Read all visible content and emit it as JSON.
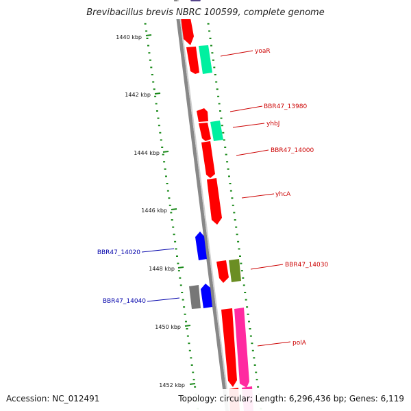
{
  "title": "Brevibacillus brevis NBRC 100599, complete genome",
  "accession": "Accession: NC_012491",
  "summary": "Topology: circular; Length: 6,296,436 bp; Genes: 6,119",
  "ticks": [
    "1440 kbp",
    "1442 kbp",
    "1444 kbp",
    "1446 kbp",
    "1448 kbp",
    "1450 kbp",
    "1452 kbp"
  ],
  "gene_labels": [
    {
      "name": "yoaR",
      "color": "#cc0000"
    },
    {
      "name": "BBR47_13980",
      "color": "#cc0000"
    },
    {
      "name": "yhbJ",
      "color": "#cc0000"
    },
    {
      "name": "BBR47_14000",
      "color": "#cc0000"
    },
    {
      "name": "yhcA",
      "color": "#cc0000"
    },
    {
      "name": "BBR47_14020",
      "color": "#0000aa"
    },
    {
      "name": "BBR47_14030",
      "color": "#cc0000"
    },
    {
      "name": "BBR47_14040",
      "color": "#0000aa"
    },
    {
      "name": "polA",
      "color": "#cc0000"
    }
  ],
  "colors": {
    "forward_cds": "#ff0000",
    "reverse_cds": "#0000ff",
    "rna_teal": "#00f0a0",
    "olive": "#6b8e23",
    "pink": "#ff2aa0",
    "grey_gene": "#777777",
    "purple": "#55448a",
    "backbone": "#888888",
    "dots": "#1a8a1a"
  }
}
